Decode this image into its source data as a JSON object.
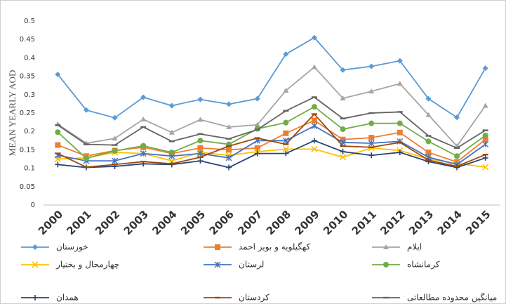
{
  "chart_data": {
    "type": "line",
    "y_label": "MEAN YEARLY AOD",
    "categories": [
      "2000",
      "2001",
      "2002",
      "2003",
      "2004",
      "2005",
      "2006",
      "2007",
      "2008",
      "2009",
      "2010",
      "2011",
      "2012",
      "2013",
      "2014",
      "2015"
    ],
    "ylim": [
      0,
      0.5
    ],
    "yticks": [
      0,
      0.05,
      0.1,
      0.15,
      0.2,
      0.25,
      0.3,
      0.35,
      0.4,
      0.45,
      0.5
    ],
    "grid": false,
    "legend": "bottom",
    "series": [
      {
        "name": "خوزستان",
        "color": "#5b9bd5",
        "marker": "diamond",
        "values": [
          0.355,
          0.258,
          0.237,
          0.293,
          0.27,
          0.287,
          0.274,
          0.289,
          0.41,
          0.455,
          0.367,
          0.377,
          0.392,
          0.289,
          0.238,
          0.372
        ]
      },
      {
        "name": "کهگیلویه و بویر احمد",
        "color": "#ed7d31",
        "marker": "square",
        "values": [
          0.163,
          0.133,
          0.148,
          0.157,
          0.14,
          0.155,
          0.15,
          0.155,
          0.195,
          0.23,
          0.178,
          0.183,
          0.197,
          0.143,
          0.117,
          0.178
        ]
      },
      {
        "name": "ایلام",
        "color": "#a5a5a5",
        "marker": "triangle",
        "values": [
          0.22,
          0.168,
          0.181,
          0.233,
          0.197,
          0.232,
          0.212,
          0.218,
          0.311,
          0.375,
          0.29,
          0.309,
          0.33,
          0.245,
          0.16,
          0.27
        ]
      },
      {
        "name": "چهارمحال و بختیار",
        "color": "#ffc000",
        "marker": "x",
        "values": [
          0.125,
          0.128,
          0.143,
          0.14,
          0.12,
          0.143,
          0.135,
          0.145,
          0.152,
          0.152,
          0.13,
          0.155,
          0.148,
          0.125,
          0.113,
          0.103
        ]
      },
      {
        "name": "لرستان",
        "color": "#4472c4",
        "marker": "star",
        "values": [
          0.135,
          0.12,
          0.12,
          0.14,
          0.133,
          0.14,
          0.128,
          0.175,
          0.175,
          0.215,
          0.17,
          0.168,
          0.173,
          0.13,
          0.11,
          0.165
        ]
      },
      {
        "name": "کرمانشاه",
        "color": "#70ad47",
        "marker": "circle",
        "values": [
          0.198,
          0.127,
          0.147,
          0.161,
          0.143,
          0.175,
          0.165,
          0.207,
          0.224,
          0.267,
          0.206,
          0.222,
          0.222,
          0.173,
          0.133,
          0.189
        ]
      },
      {
        "name": "همدان",
        "color": "#264478",
        "marker": "plus",
        "values": [
          0.11,
          0.102,
          0.105,
          0.112,
          0.11,
          0.12,
          0.102,
          0.14,
          0.14,
          0.175,
          0.145,
          0.135,
          0.143,
          0.118,
          0.102,
          0.128
        ]
      },
      {
        "name": "کردستان",
        "color": "#9e480e",
        "marker": "dash",
        "values": [
          0.14,
          0.103,
          0.11,
          0.118,
          0.112,
          0.13,
          0.16,
          0.182,
          0.165,
          0.247,
          0.16,
          0.157,
          0.17,
          0.122,
          0.105,
          0.137
        ]
      },
      {
        "name": "میانگین محدوده مطالعاتی",
        "color": "#636363",
        "marker": "dash",
        "values": [
          0.217,
          0.165,
          0.163,
          0.212,
          0.173,
          0.193,
          0.18,
          0.205,
          0.256,
          0.293,
          0.235,
          0.25,
          0.253,
          0.188,
          0.155,
          0.203
        ]
      }
    ]
  }
}
